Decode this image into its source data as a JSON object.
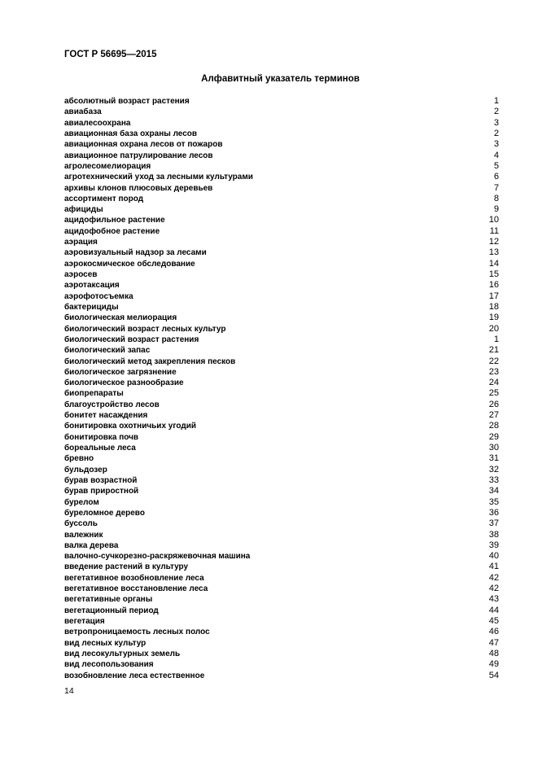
{
  "header": "ГОСТ Р 56695—2015",
  "title": "Алфавитный указатель терминов",
  "entries": [
    {
      "term": "абсолютный возраст растения",
      "page": "1"
    },
    {
      "term": "авиабаза",
      "page": "2"
    },
    {
      "term": "авиалесоохрана",
      "page": "3"
    },
    {
      "term": "авиационная база охраны лесов",
      "page": "2"
    },
    {
      "term": "авиационная охрана лесов от пожаров",
      "page": "3"
    },
    {
      "term": "авиационное патрулирование лесов",
      "page": "4"
    },
    {
      "term": "агролесомелиорация",
      "page": "5"
    },
    {
      "term": "агротехнический уход за лесными культурами",
      "page": "6"
    },
    {
      "term": "архивы клонов плюсовых деревьев",
      "page": "7"
    },
    {
      "term": "ассортимент пород",
      "page": "8"
    },
    {
      "term": "афициды",
      "page": "9"
    },
    {
      "term": "ацидофильное растение",
      "page": "10"
    },
    {
      "term": "ацидофобное растение",
      "page": "11"
    },
    {
      "term": "аэрация",
      "page": "12"
    },
    {
      "term": "аэровизуальный надзор за лесами",
      "page": "13"
    },
    {
      "term": "аэрокосмическое обследование",
      "page": "14"
    },
    {
      "term": "аэросев",
      "page": "15"
    },
    {
      "term": "аэротаксация",
      "page": "16"
    },
    {
      "term": "аэрофотосъемка",
      "page": "17"
    },
    {
      "term": "бактерициды",
      "page": "18"
    },
    {
      "term": "биологическая мелиорация",
      "page": "19"
    },
    {
      "term": "биологический возраст лесных культур",
      "page": "20"
    },
    {
      "term": "биологический возраст растения",
      "page": "1"
    },
    {
      "term": "биологический запас",
      "page": "21"
    },
    {
      "term": "биологический метод закрепления песков",
      "page": "22"
    },
    {
      "term": "биологическое загрязнение",
      "page": "23"
    },
    {
      "term": "биологическое разнообразие",
      "page": "24"
    },
    {
      "term": "биопрепараты",
      "page": "25"
    },
    {
      "term": "благоустройство лесов",
      "page": "26"
    },
    {
      "term": "бонитет насаждения",
      "page": "27"
    },
    {
      "term": "бонитировка охотничьих угодий",
      "page": "28"
    },
    {
      "term": "бонитировка почв",
      "page": "29"
    },
    {
      "term": "бореальные леса",
      "page": "30"
    },
    {
      "term": "бревно",
      "page": "31"
    },
    {
      "term": "бульдозер",
      "page": "32"
    },
    {
      "term": "бурав возрастной",
      "page": "33"
    },
    {
      "term": "бурав приростной",
      "page": "34"
    },
    {
      "term": "бурелом",
      "page": "35"
    },
    {
      "term": "буреломное дерево",
      "page": "36"
    },
    {
      "term": "буссоль",
      "page": "37"
    },
    {
      "term": "валежник",
      "page": "38"
    },
    {
      "term": "валка дерева",
      "page": "39"
    },
    {
      "term": "валочно-сучкорезно-раскряжевочная машина",
      "page": "40"
    },
    {
      "term": "введение растений в культуру",
      "page": "41"
    },
    {
      "term": "вегетативное возобновление леса",
      "page": "42"
    },
    {
      "term": "вегетативное восстановление леса",
      "page": "42"
    },
    {
      "term": "вегетативные органы",
      "page": "43"
    },
    {
      "term": "вегетационный период",
      "page": "44"
    },
    {
      "term": "вегетация",
      "page": "45"
    },
    {
      "term": "ветропроницаемость лесных полос",
      "page": "46"
    },
    {
      "term": "вид лесных культур",
      "page": "47"
    },
    {
      "term": "вид лесокультурных земель",
      "page": "48"
    },
    {
      "term": "вид лесопользования",
      "page": "49"
    },
    {
      "term": "возобновление леса естественное",
      "page": "54"
    }
  ],
  "page_number": "14"
}
